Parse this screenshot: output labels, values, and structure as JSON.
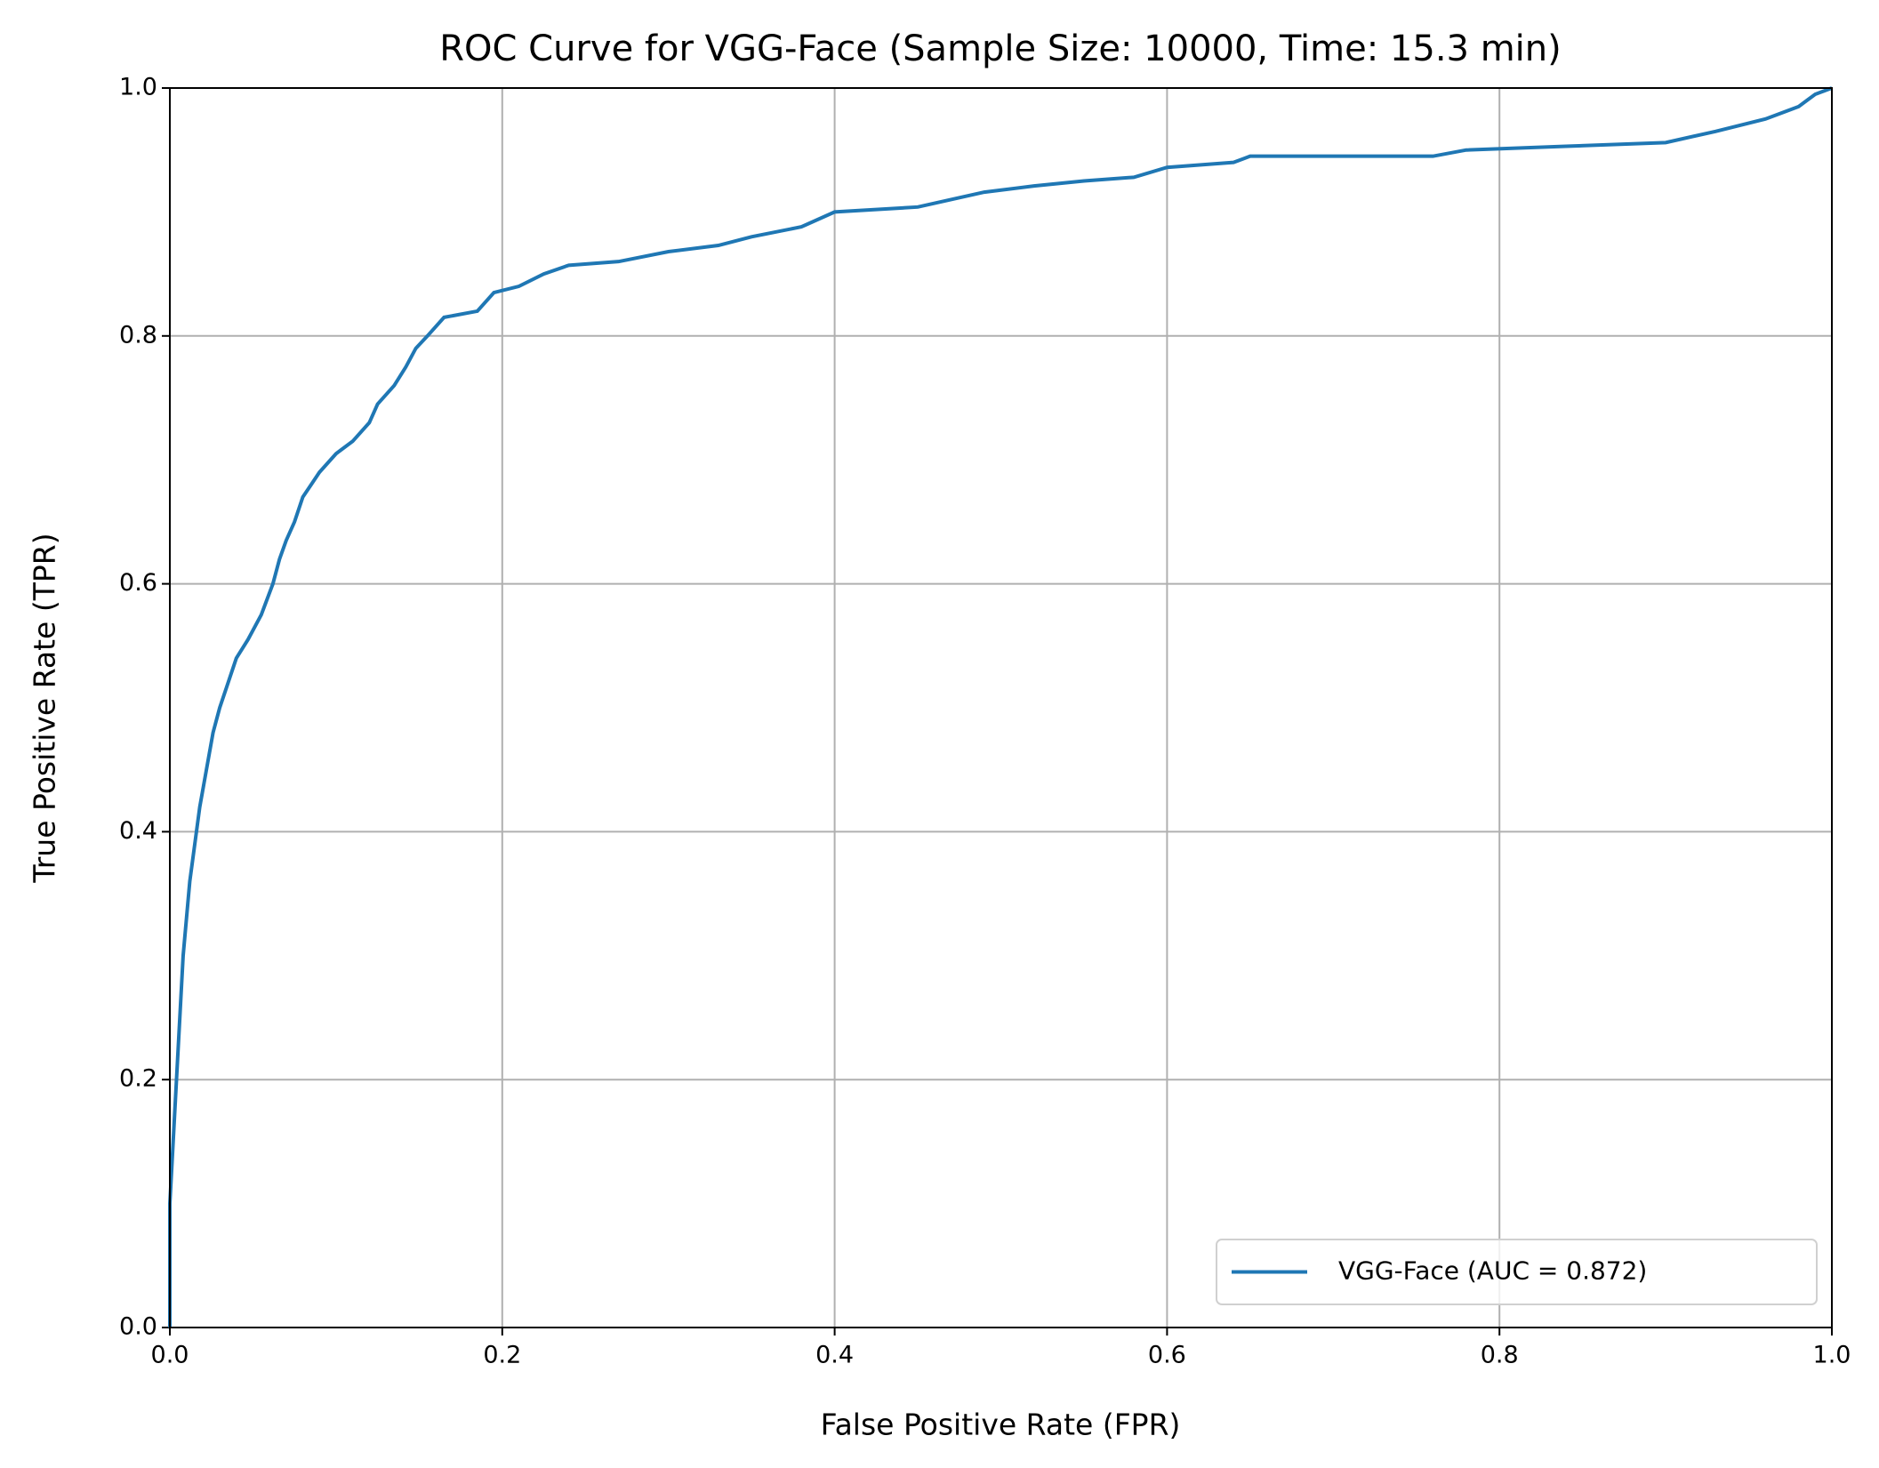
{
  "chart_data": {
    "type": "line",
    "title": "ROC Curve for VGG-Face (Sample Size: 10000, Time: 15.3 min)",
    "x_label": "False Positive Rate (FPR)",
    "y_label": "True Positive Rate (TPR)",
    "xlim": [
      0,
      1
    ],
    "ylim": [
      0,
      1
    ],
    "xticks": [
      {
        "value": 0,
        "label": "0.0"
      },
      0.2,
      0.4,
      0.6,
      0.8,
      {
        "value": 1,
        "label": "1.0"
      }
    ],
    "yticks": [
      {
        "value": 0,
        "label": "0.0"
      },
      0.2,
      0.4,
      0.6,
      0.8,
      {
        "value": 1,
        "label": "1.0"
      }
    ],
    "grid": true,
    "legend": "lower right",
    "series": [
      {
        "name": "VGG-Face (AUC = 0.872)",
        "color": "#1f77b4",
        "x": [
          0,
          0,
          0.002,
          0.004,
          0.006,
          0.008,
          0.01,
          0.012,
          0.015,
          0.018,
          0.022,
          0.026,
          0.03,
          0.035,
          0.04,
          0.047,
          0.055,
          0.062,
          0.066,
          0.07,
          0.075,
          0.08,
          0.085,
          0.09,
          0.1,
          0.11,
          0.12,
          0.125,
          0.135,
          0.142,
          0.148,
          0.155,
          0.165,
          0.185,
          0.195,
          0.21,
          0.225,
          0.24,
          0.27,
          0.3,
          0.33,
          0.35,
          0.38,
          0.4,
          0.45,
          0.47,
          0.49,
          0.52,
          0.55,
          0.58,
          0.6,
          0.64,
          0.65,
          0.76,
          0.78,
          0.84,
          0.9,
          0.93,
          0.96,
          0.98,
          0.99,
          1.0
        ],
        "values": [
          0,
          0.1,
          0.15,
          0.2,
          0.25,
          0.3,
          0.33,
          0.36,
          0.39,
          0.42,
          0.45,
          0.48,
          0.5,
          0.52,
          0.54,
          0.555,
          0.575,
          0.6,
          0.62,
          0.635,
          0.65,
          0.67,
          0.68,
          0.69,
          0.705,
          0.715,
          0.73,
          0.745,
          0.76,
          0.775,
          0.79,
          0.8,
          0.815,
          0.82,
          0.835,
          0.84,
          0.85,
          0.857,
          0.86,
          0.868,
          0.873,
          0.88,
          0.888,
          0.9,
          0.904,
          0.91,
          0.916,
          0.921,
          0.925,
          0.928,
          0.936,
          0.94,
          0.945,
          0.945,
          0.95,
          0.953,
          0.956,
          0.965,
          0.975,
          0.985,
          0.995,
          1.0
        ]
      }
    ]
  }
}
